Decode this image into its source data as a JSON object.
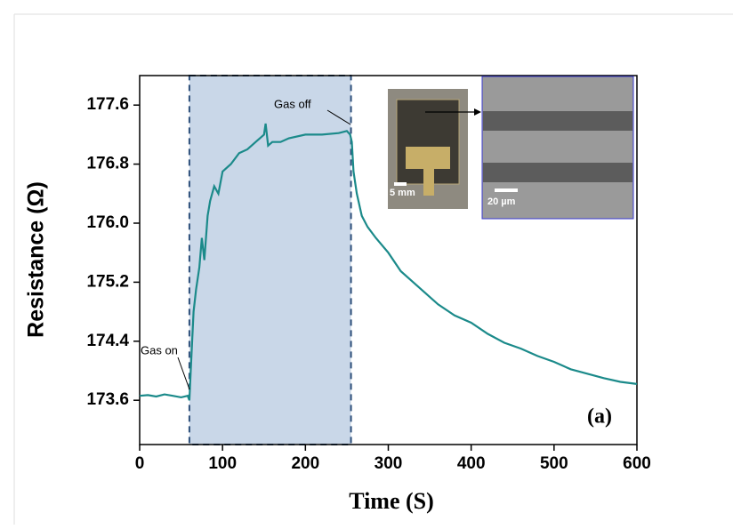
{
  "chart_data": {
    "type": "line",
    "xlabel": "Time (S)",
    "ylabel": "Resistance (Ω)",
    "x": [
      0,
      10,
      20,
      30,
      40,
      50,
      58,
      60,
      62,
      65,
      68,
      72,
      75,
      78,
      82,
      85,
      90,
      95,
      100,
      110,
      120,
      130,
      140,
      150,
      152,
      155,
      160,
      170,
      180,
      200,
      220,
      240,
      250,
      254,
      256,
      258,
      262,
      268,
      275,
      285,
      300,
      315,
      330,
      345,
      360,
      380,
      400,
      420,
      440,
      460,
      480,
      500,
      520,
      540,
      560,
      580,
      600
    ],
    "values": [
      173.66,
      173.67,
      173.65,
      173.68,
      173.66,
      173.64,
      173.66,
      173.6,
      174.1,
      174.8,
      175.1,
      175.4,
      175.8,
      175.5,
      176.1,
      176.3,
      176.5,
      176.4,
      176.7,
      176.8,
      176.95,
      177.0,
      177.1,
      177.2,
      177.35,
      177.05,
      177.1,
      177.1,
      177.15,
      177.2,
      177.2,
      177.22,
      177.25,
      177.2,
      177.1,
      176.7,
      176.4,
      176.1,
      175.95,
      175.8,
      175.6,
      175.35,
      175.2,
      175.05,
      174.9,
      174.75,
      174.65,
      174.5,
      174.38,
      174.3,
      174.2,
      174.12,
      174.02,
      173.96,
      173.9,
      173.85,
      173.82
    ],
    "color": "#1b8a8a",
    "xlim": [
      0,
      600
    ],
    "xticks": [
      0,
      100,
      200,
      300,
      400,
      500,
      600
    ],
    "ylim": [
      173.0,
      178.0
    ],
    "yticks": [
      173.6,
      174.4,
      175.2,
      {
        "value": 176,
        "label": "176.0"
      },
      176.8,
      177.6
    ],
    "highlight": {
      "x": [
        60,
        255
      ],
      "color": "#c9d7e8"
    },
    "annotations": [
      "Gas on",
      "Gas off",
      "(a)"
    ],
    "inset_labels": [
      "5 mm",
      "20 µm"
    ]
  }
}
